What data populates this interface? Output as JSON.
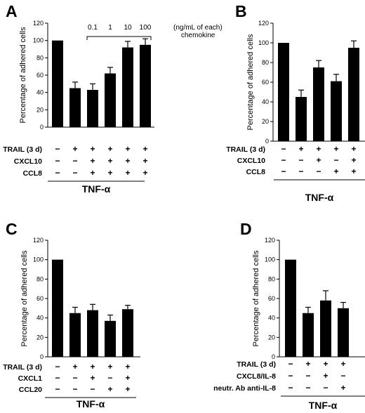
{
  "chart_data": [
    {
      "type": "bar",
      "panel": "A",
      "ylabel": "Percentage of adhered cells",
      "ylim": [
        0,
        120
      ],
      "yticks": [
        0,
        20,
        40,
        60,
        80,
        100,
        120
      ],
      "values": [
        100,
        45,
        43,
        62,
        92,
        95
      ],
      "errors": [
        0,
        7,
        7,
        7,
        7,
        7
      ],
      "conditions": [
        {
          "label": "TRAIL (3 d)",
          "signs": [
            "−",
            "+",
            "+",
            "+",
            "+",
            "+"
          ]
        },
        {
          "label": "CXCL10",
          "signs": [
            "−",
            "−",
            "+",
            "+",
            "+",
            "+"
          ]
        },
        {
          "label": "CCL8",
          "signs": [
            "−",
            "−",
            "+",
            "+",
            "+",
            "+"
          ]
        }
      ],
      "group_label": "TNF-α",
      "concentrations": [
        "0.1",
        "1",
        "10",
        "100"
      ],
      "concentration_note_line1": "(ng/mL of each)",
      "concentration_note_line2": "chemokine"
    },
    {
      "type": "bar",
      "panel": "B",
      "ylabel": "Percentage of adhered cells",
      "ylim": [
        0,
        120
      ],
      "yticks": [
        0,
        20,
        40,
        60,
        80,
        100,
        120
      ],
      "values": [
        100,
        45,
        75,
        61,
        95
      ],
      "errors": [
        0,
        7,
        7,
        7,
        7
      ],
      "conditions": [
        {
          "label": "TRAIL (3 d)",
          "signs": [
            "−",
            "+",
            "+",
            "+",
            "+"
          ]
        },
        {
          "label": "CXCL10",
          "signs": [
            "−",
            "−",
            "+",
            "−",
            "+"
          ]
        },
        {
          "label": "CCL8",
          "signs": [
            "−",
            "−",
            "−",
            "+",
            "+"
          ]
        }
      ],
      "group_label": "TNF-α"
    },
    {
      "type": "bar",
      "panel": "C",
      "ylabel": "Percentage of adhered cells",
      "ylim": [
        0,
        120
      ],
      "yticks": [
        0,
        20,
        40,
        60,
        80,
        100,
        120
      ],
      "values": [
        100,
        45,
        48,
        37,
        49
      ],
      "errors": [
        0,
        6,
        6,
        6,
        4
      ],
      "conditions": [
        {
          "label": "TRAIL (3 d)",
          "signs": [
            "−",
            "+",
            "+",
            "+",
            "+"
          ]
        },
        {
          "label": "CXCL1",
          "signs": [
            "−",
            "−",
            "+",
            "−",
            "+"
          ]
        },
        {
          "label": "CCL20",
          "signs": [
            "−",
            "−",
            "−",
            "+",
            "+"
          ]
        }
      ],
      "group_label": "TNF-α"
    },
    {
      "type": "bar",
      "panel": "D",
      "ylabel": "Percentage of adhered cells",
      "ylim": [
        0,
        120
      ],
      "yticks": [
        0,
        20,
        40,
        60,
        80,
        100,
        120
      ],
      "values": [
        100,
        45,
        58,
        50
      ],
      "errors": [
        0,
        6,
        10,
        6
      ],
      "conditions": [
        {
          "label": "TRAIL (3 d)",
          "signs": [
            "−",
            "+",
            "+",
            "+"
          ]
        },
        {
          "label": "CXCL8/IL-8",
          "signs": [
            "−",
            "−",
            "+",
            "−"
          ]
        },
        {
          "label": "neutr. Ab anti-IL-8",
          "signs": [
            "−",
            "−",
            "−",
            "+"
          ]
        }
      ],
      "group_label": "TNF-α"
    }
  ]
}
